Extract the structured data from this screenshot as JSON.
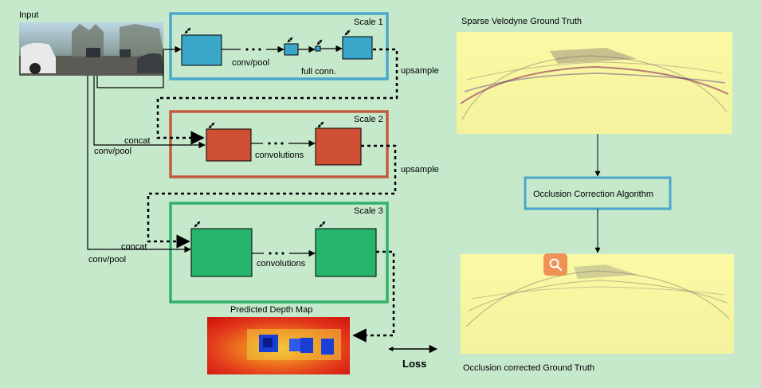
{
  "input_label": "Input",
  "scales": [
    {
      "label": "Scale 1",
      "color": "#4aa7cc"
    },
    {
      "label": "Scale 2",
      "color": "#c45a3e"
    },
    {
      "label": "Scale 3",
      "color": "#2fb26b"
    }
  ],
  "box_colors": {
    "scale1": "#3aa6c9",
    "scale2": "#cf4f34",
    "scale3": "#27b56e"
  },
  "labels": {
    "conv_pool": "conv/pool",
    "full_conn": "full conn.",
    "upsample": "upsample",
    "concat": "concat",
    "convolutions": "convolutions",
    "predicted_depth_map": "Predicted Depth Map",
    "loss": "Loss",
    "sparse_gt": "Sparse Velodyne Ground Truth",
    "occlusion_algo": "Occlusion Correction Algorithm",
    "corrected_gt": "Occlusion corrected Ground Truth"
  },
  "icons": {
    "search": "search-icon",
    "resize": "resize-arrow-icon"
  }
}
